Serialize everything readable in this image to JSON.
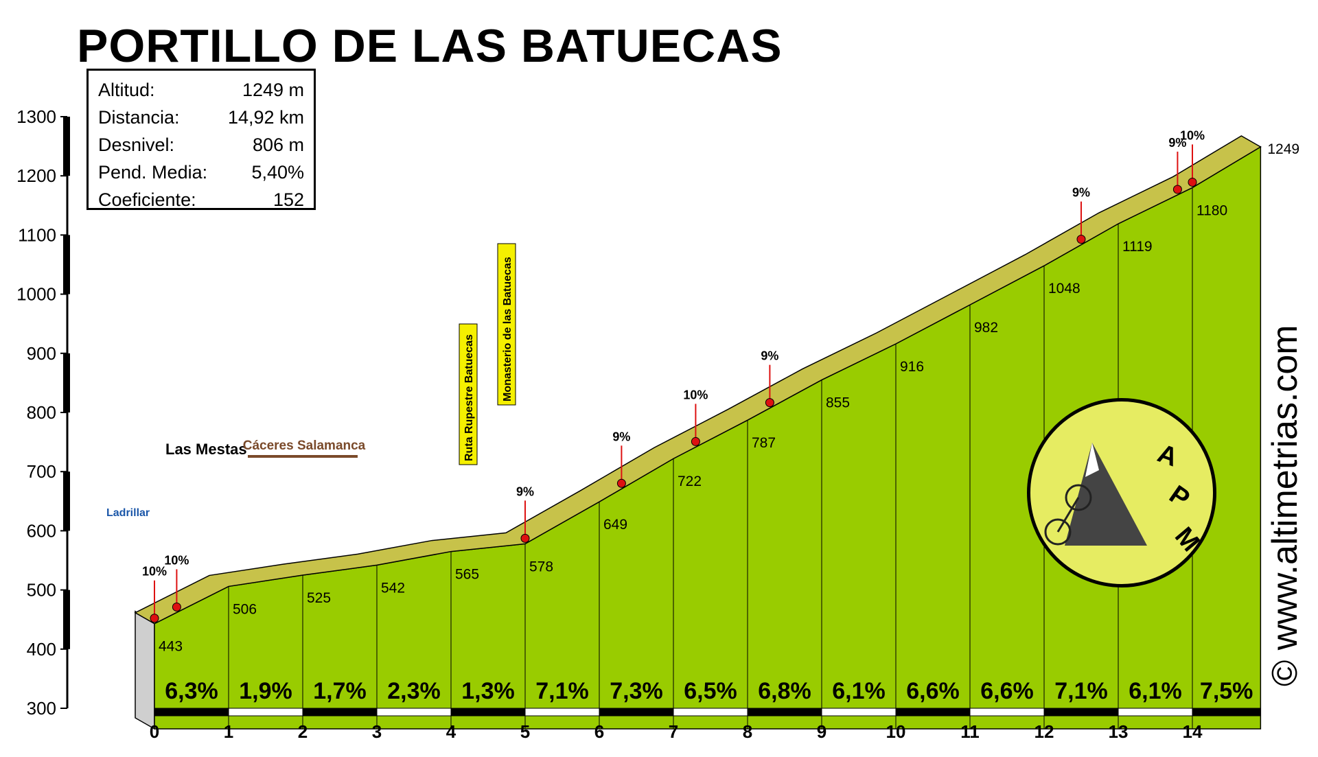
{
  "title": "PORTILLO DE LAS BATUECAS",
  "stats": [
    {
      "label": "Altitud:",
      "value": "1249 m"
    },
    {
      "label": "Distancia:",
      "value": "14,92 km"
    },
    {
      "label": "Desnivel:",
      "value": "806 m"
    },
    {
      "label": "Pend. Media:",
      "value": "5,40%"
    },
    {
      "label": "Coeficiente:",
      "value": "152"
    }
  ],
  "brand": "© www.altimetrias.com",
  "logo_letters": [
    "A",
    "P",
    "M"
  ],
  "colors": {
    "fill": "#99cc00",
    "band": "#c7c24a",
    "band_dark": "#6b6a1a",
    "marker": "#dd1111",
    "road": "#7a4a2a",
    "sign": "#1a56a8",
    "label_bg": "#f5f000"
  },
  "chart_data": {
    "type": "area",
    "title": "PORTILLO DE LAS BATUECAS",
    "xlabel": "",
    "ylabel": "",
    "xlim": [
      0,
      15
    ],
    "ylim": [
      300,
      1300
    ],
    "x_ticks": [
      0,
      1,
      2,
      3,
      4,
      5,
      6,
      7,
      8,
      9,
      10,
      11,
      12,
      13,
      14
    ],
    "y_ticks": [
      300,
      400,
      500,
      600,
      700,
      800,
      900,
      1000,
      1100,
      1200,
      1300
    ],
    "profile": {
      "x": [
        0,
        1,
        2,
        3,
        4,
        5,
        6,
        7,
        8,
        9,
        10,
        11,
        12,
        13,
        14,
        14.92
      ],
      "altitude": [
        443,
        506,
        525,
        542,
        565,
        578,
        649,
        722,
        787,
        855,
        916,
        982,
        1048,
        1119,
        1180,
        1249
      ]
    },
    "segment_gradients": [
      "6,3%",
      "1,9%",
      "1,7%",
      "2,3%",
      "1,3%",
      "7,1%",
      "7,3%",
      "6,5%",
      "6,8%",
      "6,1%",
      "6,6%",
      "6,6%",
      "7,1%",
      "6,1%",
      "7,5%"
    ],
    "steep_markers": [
      {
        "x": 0.0,
        "label": "10%"
      },
      {
        "x": 0.3,
        "label": "10%"
      },
      {
        "x": 5.0,
        "label": "9%"
      },
      {
        "x": 6.3,
        "label": "9%"
      },
      {
        "x": 7.3,
        "label": "10%"
      },
      {
        "x": 8.3,
        "label": "9%"
      },
      {
        "x": 12.5,
        "label": "9%"
      },
      {
        "x": 13.8,
        "label": "9%"
      },
      {
        "x": 14.0,
        "label": "10%"
      }
    ],
    "annotations": [
      {
        "x": 0,
        "text": "Las Mestas"
      },
      {
        "x": 0,
        "text": "Ladrillar"
      },
      {
        "x": 2,
        "text": "Cáceres Salamanca"
      },
      {
        "x": 4,
        "text": "Ruta Rupestre Batuecas"
      },
      {
        "x": 5,
        "text": "Monasterio de las Batuecas"
      }
    ]
  }
}
